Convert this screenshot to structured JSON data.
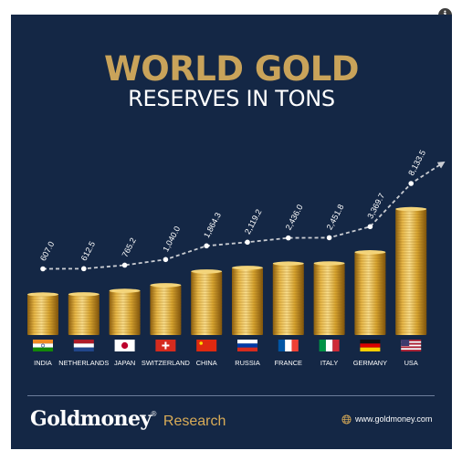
{
  "header": {
    "title": "WORLD GOLD",
    "subtitle": "RESERVES IN TONS"
  },
  "info_icon": {
    "glyph": "i",
    "icon": "info-icon"
  },
  "footer": {
    "brand_name": "Goldmoney",
    "brand_mark": "®",
    "brand_sub": "Research",
    "website": "www.goldmoney.com",
    "website_icon": "globe-icon"
  },
  "colors": {
    "background": "#142745",
    "title_gold": "#c9a35a",
    "coin_gold": "#d9a631",
    "coin_light": "#f3d47a",
    "coin_dark": "#9a6a12",
    "trend_line": "#c9ccd2"
  },
  "chart_data": {
    "type": "bar",
    "title": "WORLD GOLD",
    "subtitle": "RESERVES IN TONS",
    "xlabel": "",
    "ylabel": "",
    "grid": false,
    "legend": "none",
    "trend_line": true,
    "ylim": [
      0,
      8133.5
    ],
    "categories": [
      "INDIA",
      "NETHERLANDS",
      "JAPAN",
      "SWITZERLAND",
      "CHINA",
      "RUSSIA",
      "FRANCE",
      "ITALY",
      "GERMANY",
      "USA"
    ],
    "values": [
      607.0,
      612.5,
      765.2,
      1040.0,
      1864.3,
      2119.2,
      2436.0,
      2451.8,
      3369.7,
      8133.5
    ],
    "value_labels": [
      "607.0",
      "612.5",
      "765.2",
      "1,040.0",
      "1,864.3",
      "2,119.2",
      "2,436.0",
      "2,451.8",
      "3,369.7",
      "8,133.5"
    ],
    "flags": [
      "india-flag",
      "netherlands-flag",
      "japan-flag",
      "switzerland-flag",
      "china-flag",
      "russia-flag",
      "france-flag",
      "italy-flag",
      "germany-flag",
      "usa-flag"
    ]
  }
}
